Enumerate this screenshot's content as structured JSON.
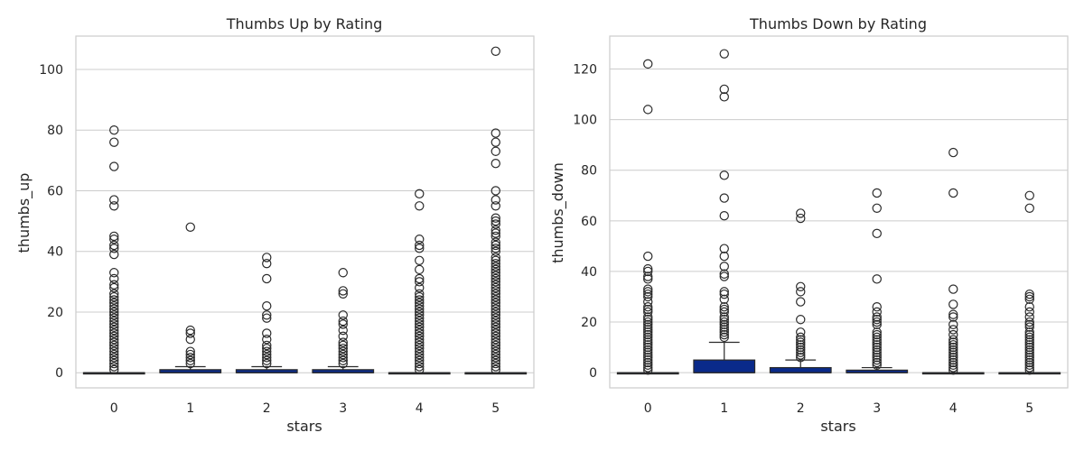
{
  "chart_data": [
    {
      "type": "box",
      "title": "Thumbs Up by Rating",
      "xlabel": "stars",
      "ylabel": "thumbs_up",
      "categories": [
        "0",
        "1",
        "2",
        "3",
        "4",
        "5"
      ],
      "ylim": [
        -5,
        111
      ],
      "yticks": [
        0,
        20,
        40,
        60,
        80,
        100
      ],
      "grid": true,
      "box_color": "#0a2a8a",
      "boxes": [
        {
          "q1": 0,
          "median": 0,
          "q3": 0,
          "whisker_low": 0,
          "whisker_high": 0,
          "outliers": [
            1,
            2,
            3,
            4,
            5,
            6,
            7,
            8,
            9,
            10,
            11,
            12,
            13,
            14,
            15,
            16,
            17,
            18,
            19,
            20,
            21,
            22,
            23,
            24,
            25,
            26,
            28,
            29,
            31,
            33,
            39,
            41,
            42,
            44,
            45,
            55,
            57,
            68,
            76,
            80
          ]
        },
        {
          "q1": 0,
          "median": 0,
          "q3": 1,
          "whisker_low": 0,
          "whisker_high": 2,
          "outliers": [
            3,
            4,
            5,
            6,
            7,
            11,
            13,
            14,
            48
          ]
        },
        {
          "q1": 0,
          "median": 0,
          "q3": 1,
          "whisker_low": 0,
          "whisker_high": 2,
          "outliers": [
            3,
            4,
            5,
            6,
            7,
            8,
            9,
            11,
            13,
            18,
            19,
            22,
            31,
            36,
            38
          ]
        },
        {
          "q1": 0,
          "median": 0,
          "q3": 1,
          "whisker_low": 0,
          "whisker_high": 2,
          "outliers": [
            3,
            4,
            5,
            6,
            7,
            8,
            9,
            10,
            12,
            14,
            16,
            17,
            19,
            26,
            27,
            33
          ]
        },
        {
          "q1": 0,
          "median": 0,
          "q3": 0,
          "whisker_low": 0,
          "whisker_high": 0,
          "outliers": [
            1,
            2,
            3,
            4,
            5,
            6,
            7,
            8,
            9,
            10,
            11,
            12,
            13,
            14,
            15,
            16,
            17,
            18,
            19,
            20,
            21,
            22,
            23,
            24,
            25,
            26,
            28,
            30,
            31,
            34,
            37,
            41,
            42,
            44,
            55,
            59
          ]
        },
        {
          "q1": 0,
          "median": 0,
          "q3": 0,
          "whisker_low": 0,
          "whisker_high": 0,
          "outliers": [
            1,
            2,
            3,
            4,
            5,
            6,
            7,
            8,
            9,
            10,
            11,
            12,
            13,
            14,
            15,
            16,
            17,
            18,
            19,
            20,
            21,
            22,
            23,
            24,
            25,
            26,
            27,
            28,
            29,
            30,
            31,
            32,
            33,
            34,
            35,
            36,
            37,
            38,
            40,
            41,
            42,
            43,
            45,
            46,
            47,
            49,
            50,
            51,
            55,
            57,
            60,
            69,
            73,
            76,
            79,
            106
          ]
        }
      ]
    },
    {
      "type": "box",
      "title": "Thumbs Down by Rating",
      "xlabel": "stars",
      "ylabel": "thumbs_down",
      "categories": [
        "0",
        "1",
        "2",
        "3",
        "4",
        "5"
      ],
      "ylim": [
        -6,
        133
      ],
      "yticks": [
        0,
        20,
        40,
        60,
        80,
        100,
        120
      ],
      "grid": true,
      "box_color": "#0a2a8a",
      "boxes": [
        {
          "q1": 0,
          "median": 0,
          "q3": 0,
          "whisker_low": 0,
          "whisker_high": 0,
          "outliers": [
            1,
            2,
            3,
            4,
            5,
            6,
            7,
            8,
            9,
            10,
            11,
            12,
            13,
            14,
            15,
            16,
            17,
            18,
            19,
            20,
            21,
            22,
            24,
            25,
            26,
            28,
            30,
            31,
            32,
            33,
            37,
            38,
            40,
            41,
            46,
            104,
            122
          ]
        },
        {
          "q1": 0,
          "median": 0,
          "q3": 5,
          "whisker_low": 0,
          "whisker_high": 12,
          "outliers": [
            14,
            15,
            16,
            17,
            18,
            19,
            20,
            21,
            22,
            24,
            25,
            26,
            29,
            31,
            32,
            38,
            39,
            42,
            46,
            49,
            62,
            69,
            78,
            109,
            112,
            126
          ]
        },
        {
          "q1": 0,
          "median": 0,
          "q3": 2,
          "whisker_low": 0,
          "whisker_high": 5,
          "outliers": [
            6,
            7,
            8,
            9,
            10,
            11,
            12,
            13,
            14,
            16,
            21,
            28,
            32,
            34,
            61,
            63
          ]
        },
        {
          "q1": 0,
          "median": 0,
          "q3": 1,
          "whisker_low": 0,
          "whisker_high": 2,
          "outliers": [
            3,
            4,
            5,
            6,
            7,
            8,
            9,
            10,
            11,
            12,
            13,
            14,
            15,
            16,
            19,
            20,
            21,
            22,
            24,
            26,
            37,
            55,
            65,
            71
          ]
        },
        {
          "q1": 0,
          "median": 0,
          "q3": 0,
          "whisker_low": 0,
          "whisker_high": 0,
          "outliers": [
            1,
            2,
            3,
            4,
            5,
            6,
            7,
            8,
            9,
            10,
            11,
            12,
            13,
            15,
            17,
            19,
            22,
            23,
            27,
            33,
            71,
            87
          ]
        },
        {
          "q1": 0,
          "median": 0,
          "q3": 0,
          "whisker_low": 0,
          "whisker_high": 0,
          "outliers": [
            1,
            2,
            3,
            4,
            5,
            6,
            7,
            8,
            9,
            10,
            11,
            12,
            13,
            14,
            15,
            16,
            18,
            19,
            20,
            22,
            24,
            26,
            29,
            30,
            31,
            65,
            70
          ]
        }
      ]
    }
  ]
}
